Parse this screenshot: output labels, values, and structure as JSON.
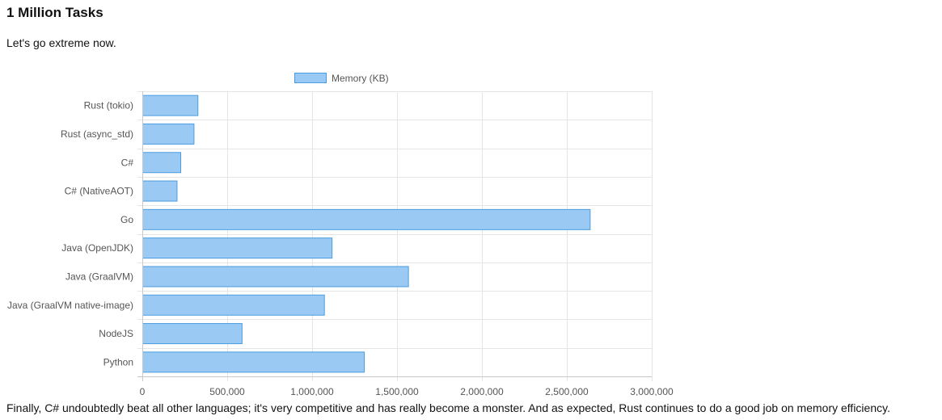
{
  "article": {
    "heading": "1 Million Tasks",
    "intro": "Let's go extreme now.",
    "conclusion": "Finally, C# undoubtedly beat all other languages; it's very competitive and has really become a monster. And as expected, Rust continues to do a good job on memory efficiency."
  },
  "chart_data": {
    "type": "bar",
    "orientation": "horizontal",
    "categories": [
      "Rust (tokio)",
      "Rust (async_std)",
      "C#",
      "C# (NativeAOT)",
      "Go",
      "Java (OpenJDK)",
      "Java (GraalVM)",
      "Java (GraalVM native-image)",
      "NodeJS",
      "Python"
    ],
    "series": [
      {
        "name": "Memory (KB)",
        "values": [
          325000,
          302000,
          224000,
          202000,
          2635000,
          1115000,
          1565000,
          1070000,
          585000,
          1305000
        ]
      }
    ],
    "xlim": [
      0,
      3000000
    ],
    "xticks": [
      0,
      500000,
      1000000,
      1500000,
      2000000,
      2500000,
      3000000
    ],
    "xtick_labels": [
      "0",
      "500,000",
      "1,000,000",
      "1,500,000",
      "2,000,000",
      "2,500,000",
      "3,000,000"
    ],
    "grid": true,
    "legend": "top",
    "colors": {
      "bar_fill": "#9ac9f3",
      "bar_stroke": "#4a9de0",
      "grid": "#e5e5e5"
    }
  }
}
